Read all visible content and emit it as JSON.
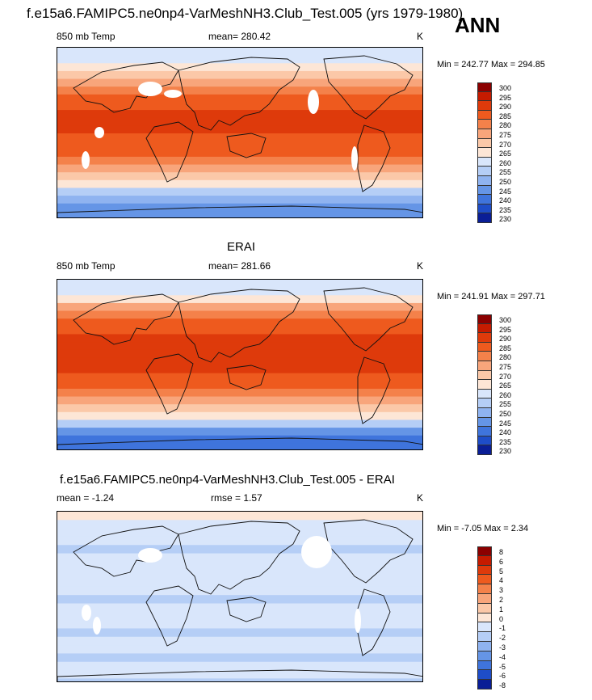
{
  "page_title": "f.e15a6.FAMIPC5.ne0np4-VarMeshNH3.Club_Test.005 (yrs 1979-1980)",
  "season": "ANN",
  "panels": [
    {
      "title": "",
      "left_label": "850 mb Temp",
      "center_label": "mean= 280.42",
      "right_label": "K",
      "minmax": "Min = 242.77 Max = 294.85"
    },
    {
      "title": "ERAI",
      "left_label": "850 mb Temp",
      "center_label": "mean= 281.66",
      "right_label": "K",
      "minmax": "Min = 241.91 Max = 297.71"
    },
    {
      "title": "f.e15a6.FAMIPC5.ne0np4-VarMeshNH3.Club_Test.005 - ERAI",
      "left_label": "mean =  -1.24",
      "center_label": "rmse =   1.57",
      "right_label": "K",
      "minmax": "Min =  -7.05 Max =   2.34"
    }
  ],
  "chart_data": [
    {
      "type": "heatmap",
      "title": "850 mb Temp (model)",
      "units": "K",
      "mean": 280.42,
      "min": 242.77,
      "max": 294.85,
      "levels": [
        "300",
        "295",
        "290",
        "285",
        "280",
        "275",
        "270",
        "265",
        "260",
        "255",
        "250",
        "245",
        "240",
        "235",
        "230"
      ],
      "colors": [
        "#8b0000",
        "#c51b00",
        "#de3a0b",
        "#ee5a1e",
        "#f4814a",
        "#f8a57b",
        "#fbc8a8",
        "#fde6d6",
        "#d9e6fb",
        "#b5cef6",
        "#8fb3f0",
        "#6595e6",
        "#3f74dc",
        "#1e4dc8",
        "#0a1e96"
      ],
      "band_profile": [
        262,
        264,
        268,
        273,
        279,
        284,
        287,
        289,
        290,
        290,
        290,
        289,
        288,
        286,
        283,
        278,
        272,
        265,
        258,
        252,
        248,
        245
      ]
    },
    {
      "type": "heatmap",
      "title": "ERAI",
      "units": "K",
      "mean": 281.66,
      "min": 241.91,
      "max": 297.71,
      "levels": [
        "300",
        "295",
        "290",
        "285",
        "280",
        "275",
        "270",
        "265",
        "260",
        "255",
        "250",
        "245",
        "240",
        "235",
        "230"
      ],
      "colors": [
        "#8b0000",
        "#c51b00",
        "#de3a0b",
        "#ee5a1e",
        "#f4814a",
        "#f8a57b",
        "#fbc8a8",
        "#fde6d6",
        "#d9e6fb",
        "#b5cef6",
        "#8fb3f0",
        "#6595e6",
        "#3f74dc",
        "#1e4dc8",
        "#0a1e96"
      ],
      "band_profile": [
        261,
        264,
        269,
        275,
        281,
        286,
        289,
        291,
        292,
        292,
        291,
        290,
        289,
        287,
        284,
        279,
        272,
        265,
        256,
        248,
        244,
        242
      ]
    },
    {
      "type": "heatmap",
      "title": "f.e15a6.FAMIPC5.ne0np4-VarMeshNH3.Club_Test.005 - ERAI",
      "units": "K",
      "mean": -1.24,
      "rmse": 1.57,
      "min": -7.05,
      "max": 2.34,
      "levels": [
        "8",
        "6",
        "5",
        "4",
        "3",
        "2",
        "1",
        "0",
        "-1",
        "-2",
        "-3",
        "-4",
        "-5",
        "-6",
        "-8"
      ],
      "colors": [
        "#8b0000",
        "#c51b00",
        "#de3a0b",
        "#ee5a1e",
        "#f4814a",
        "#f8a57b",
        "#fbc8a8",
        "#fde6d6",
        "#d9e6fb",
        "#b5cef6",
        "#8fb3f0",
        "#6595e6",
        "#3f74dc",
        "#1e4dc8",
        "#0a1e96"
      ],
      "band_profile": [
        0,
        -1,
        -1,
        -1,
        -2,
        -1,
        -1,
        -1,
        -1,
        -1,
        -2,
        -1,
        -1,
        -1,
        -2,
        -1,
        -1,
        -2,
        -1,
        -1,
        -2,
        -1
      ]
    }
  ]
}
